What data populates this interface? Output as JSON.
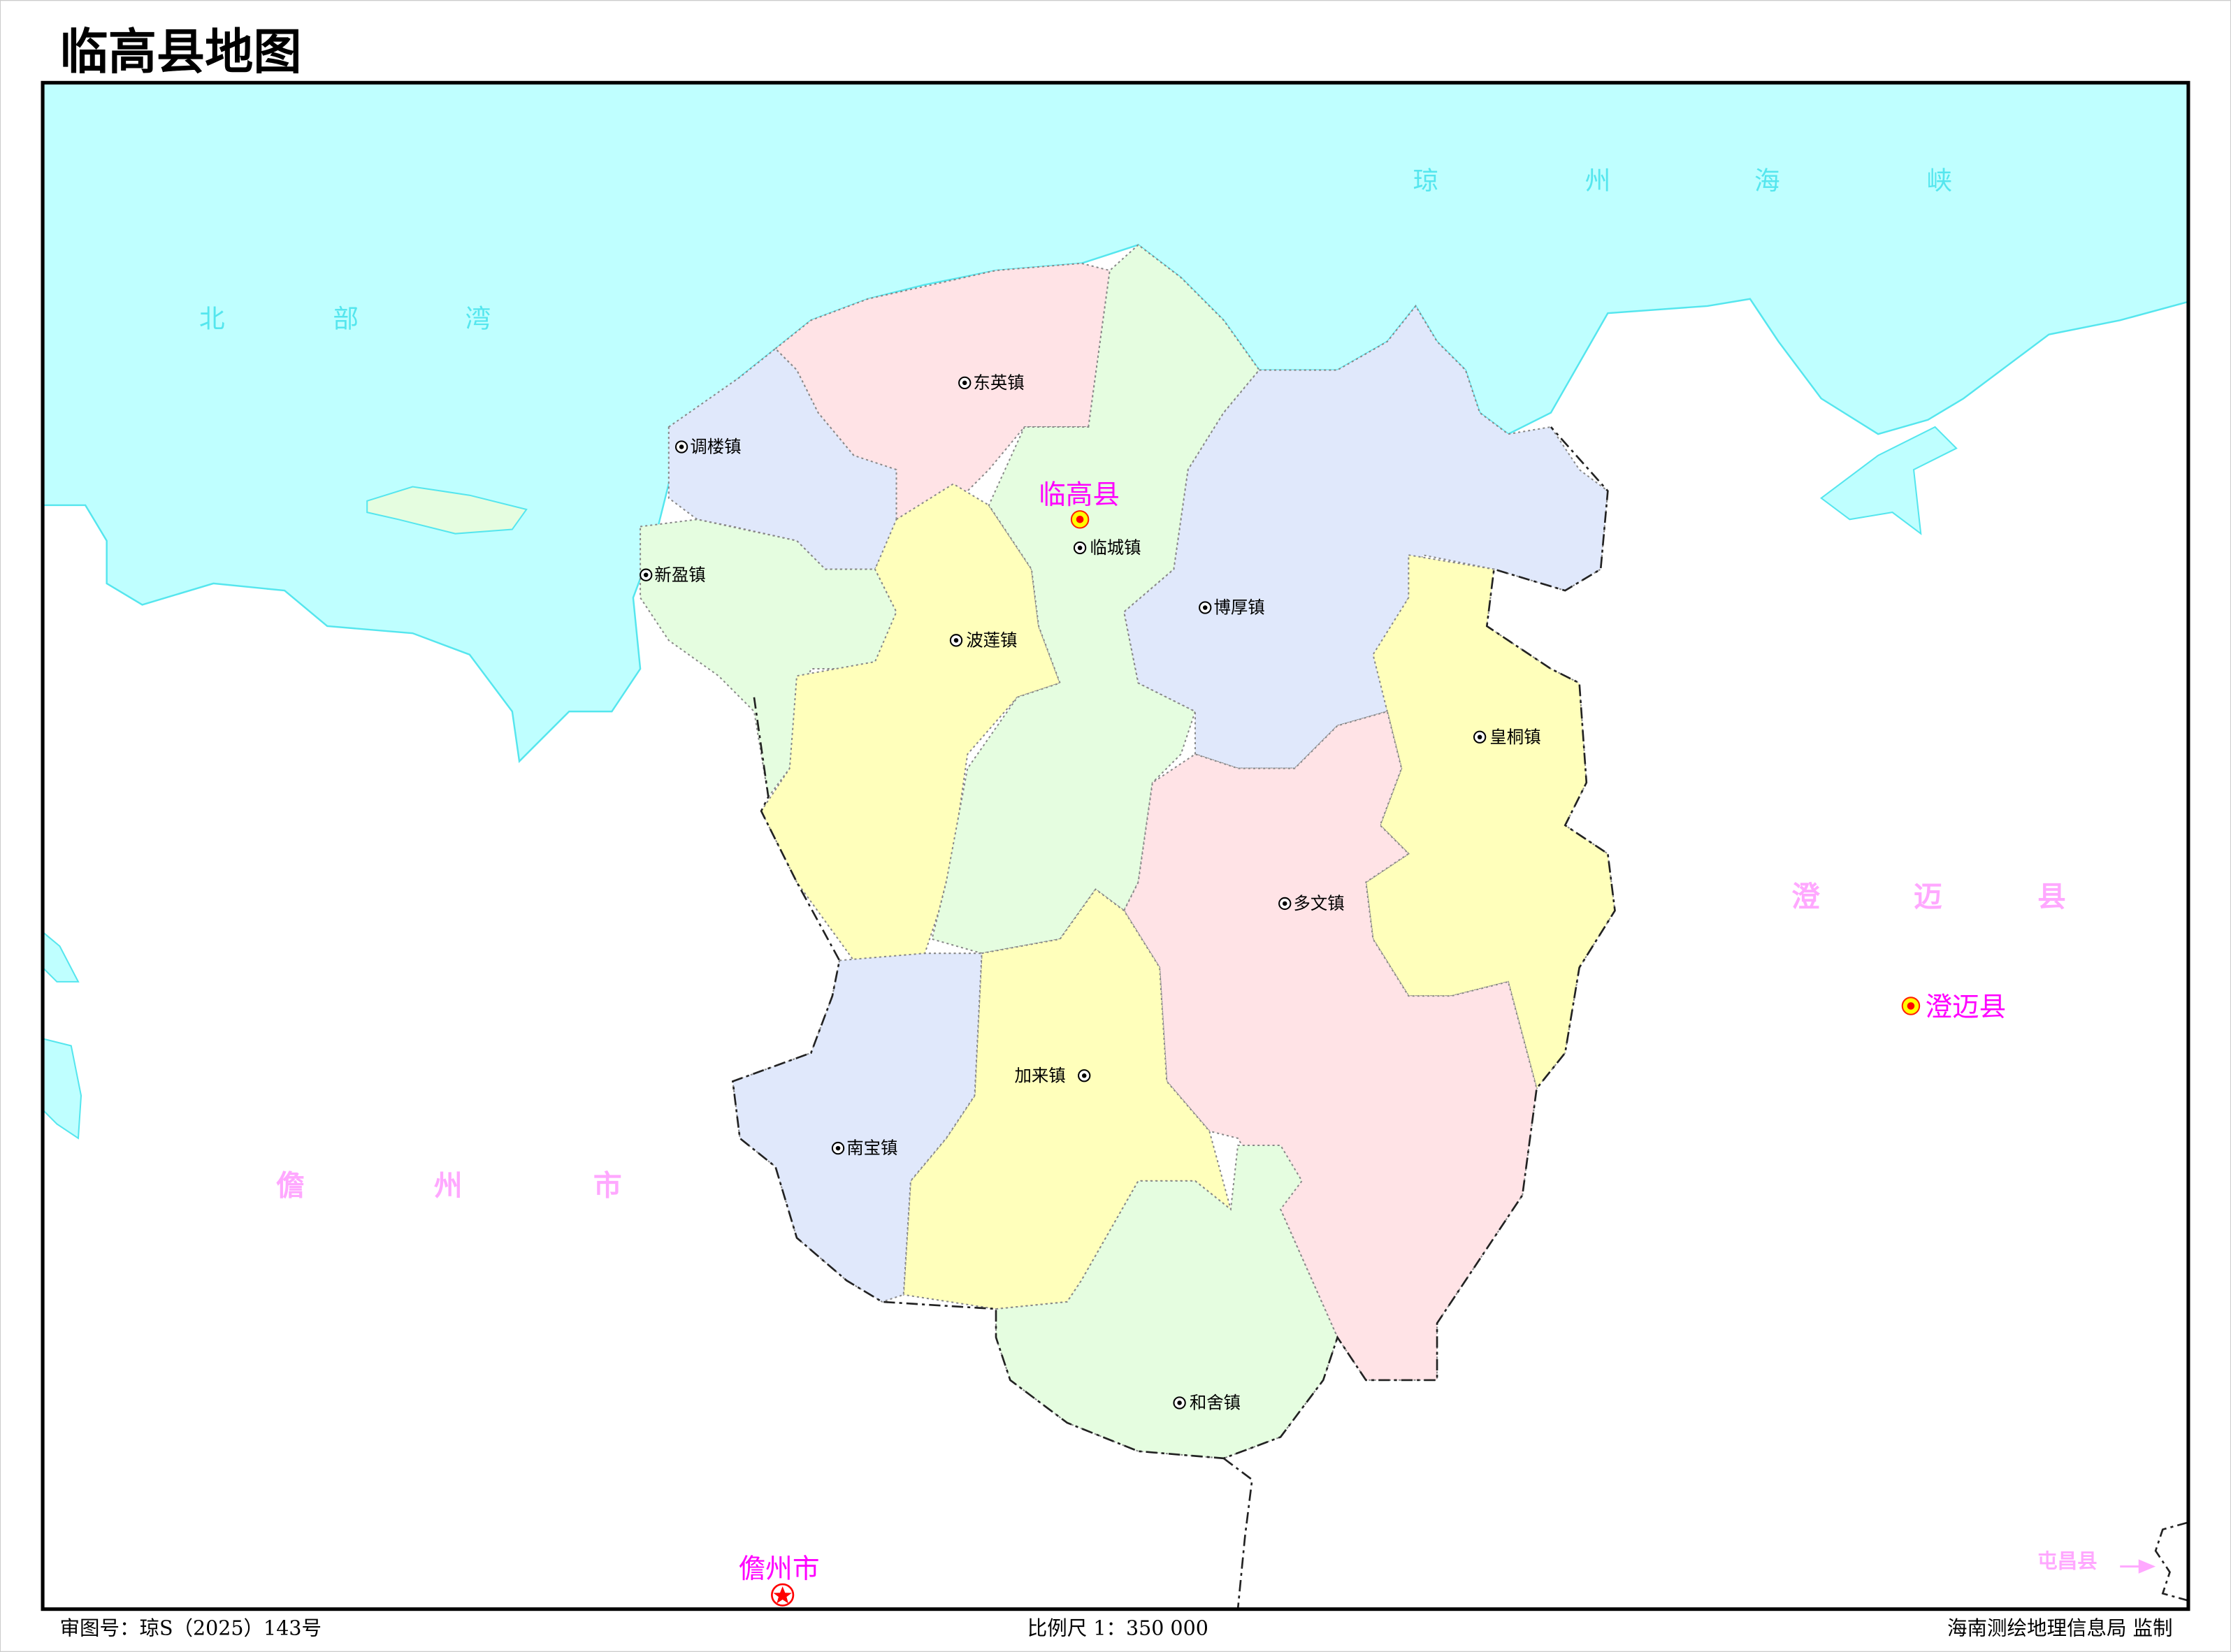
{
  "title": "临高县地图",
  "colors": {
    "sea": "#bfffff",
    "coast": "#55e6ee",
    "pink": "#ffe3e6",
    "blue": "#e0e8fb",
    "green": "#e5fde0",
    "yellow": "#ffffbb",
    "county_label": "#ff00ff",
    "neighbor_label": "#ffa8ff"
  },
  "county_seat": {
    "label": "临高县",
    "icon": "county-seat-icon"
  },
  "neighbor_seat": {
    "label": "澄迈县",
    "icon": "county-seat-icon"
  },
  "city_seat": {
    "label": "儋州市",
    "icon": "city-star-icon"
  },
  "towns": [
    {
      "label": "东英镇"
    },
    {
      "label": "调楼镇"
    },
    {
      "label": "临城镇"
    },
    {
      "label": "新盈镇"
    },
    {
      "label": "博厚镇"
    },
    {
      "label": "波莲镇"
    },
    {
      "label": "皇桐镇"
    },
    {
      "label": "多文镇"
    },
    {
      "label": "加来镇"
    },
    {
      "label": "南宝镇"
    },
    {
      "label": "和舍镇"
    }
  ],
  "water_labels": {
    "qiongzhou_strait": [
      "琼",
      "州",
      "海",
      "峡"
    ],
    "beibu_gulf": [
      "北",
      "部",
      "湾"
    ]
  },
  "neighbor_labels": {
    "chengmai": [
      "澄",
      "迈",
      "县"
    ],
    "danzhou": [
      "儋",
      "州",
      "市"
    ],
    "tunchang": "屯昌县"
  },
  "footer": {
    "approval": "审图号：琼S（2025）143号",
    "scale": "比例尺 1：350 000",
    "publisher": "海南测绘地理信息局 监制"
  }
}
